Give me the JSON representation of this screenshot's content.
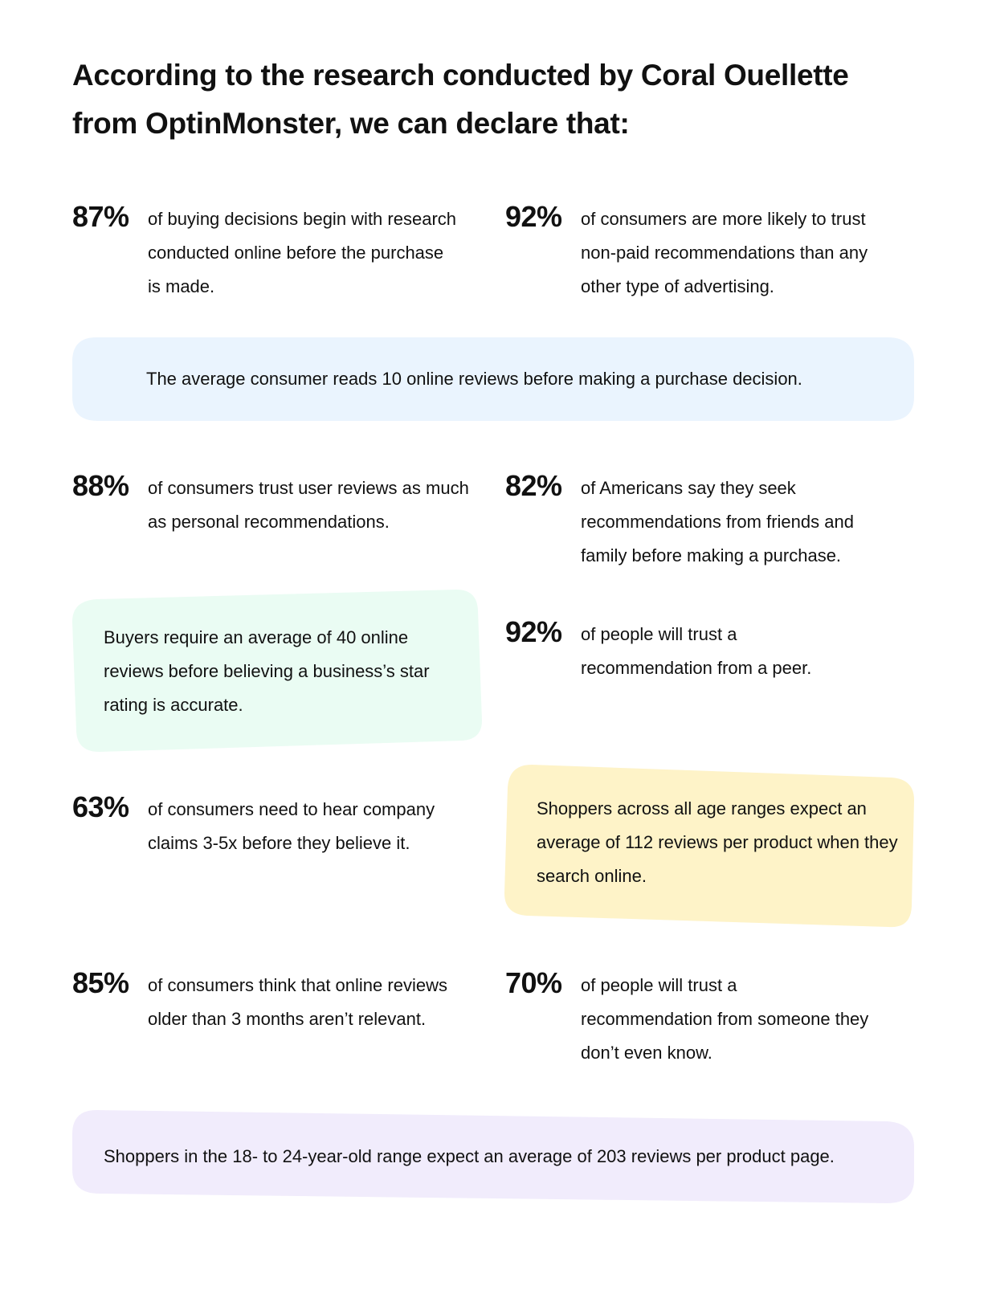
{
  "title": "According to the research conducted by Coral Ouellette from OptinMonster, we can declare that:",
  "stats": [
    {
      "percent": "87%",
      "text": "of buying decisions begin with research conducted online before the purchase is made."
    },
    {
      "percent": "92%",
      "text": "of consumers are more likely to trust non-paid recommendations than any other type of advertising."
    },
    {
      "percent": "88%",
      "text": "of consumers trust user reviews as much as personal recommendations."
    },
    {
      "percent": "82%",
      "text": "of Americans say they seek recommendations from friends and family before making a purchase."
    },
    {
      "percent": "92%",
      "text": "of people will trust a recommendation from a peer."
    },
    {
      "percent": "63%",
      "text": "of consumers need to hear company claims 3-5x before they believe it."
    },
    {
      "percent": "85%",
      "text": "of consumers think that online reviews older than 3 months aren’t relevant."
    },
    {
      "percent": "70%",
      "text": "of people will trust a recommendation from someone they don’t even know."
    }
  ],
  "highlights": [
    {
      "text": "The average consumer reads 10 online reviews before making a purchase decision.",
      "color": "#eaf4fe"
    },
    {
      "text": "Buyers require an average of 40 online reviews before believing a business’s star rating is accurate.",
      "color": "#eafcf3"
    },
    {
      "text": "Shoppers across all age ranges expect an average of 112 reviews per product when they search online.",
      "color": "#fef3c8"
    },
    {
      "text": "Shoppers in the 18- to 24-year-old range expect an average of 203 reviews per product page.",
      "color": "#f1ecfc"
    }
  ]
}
